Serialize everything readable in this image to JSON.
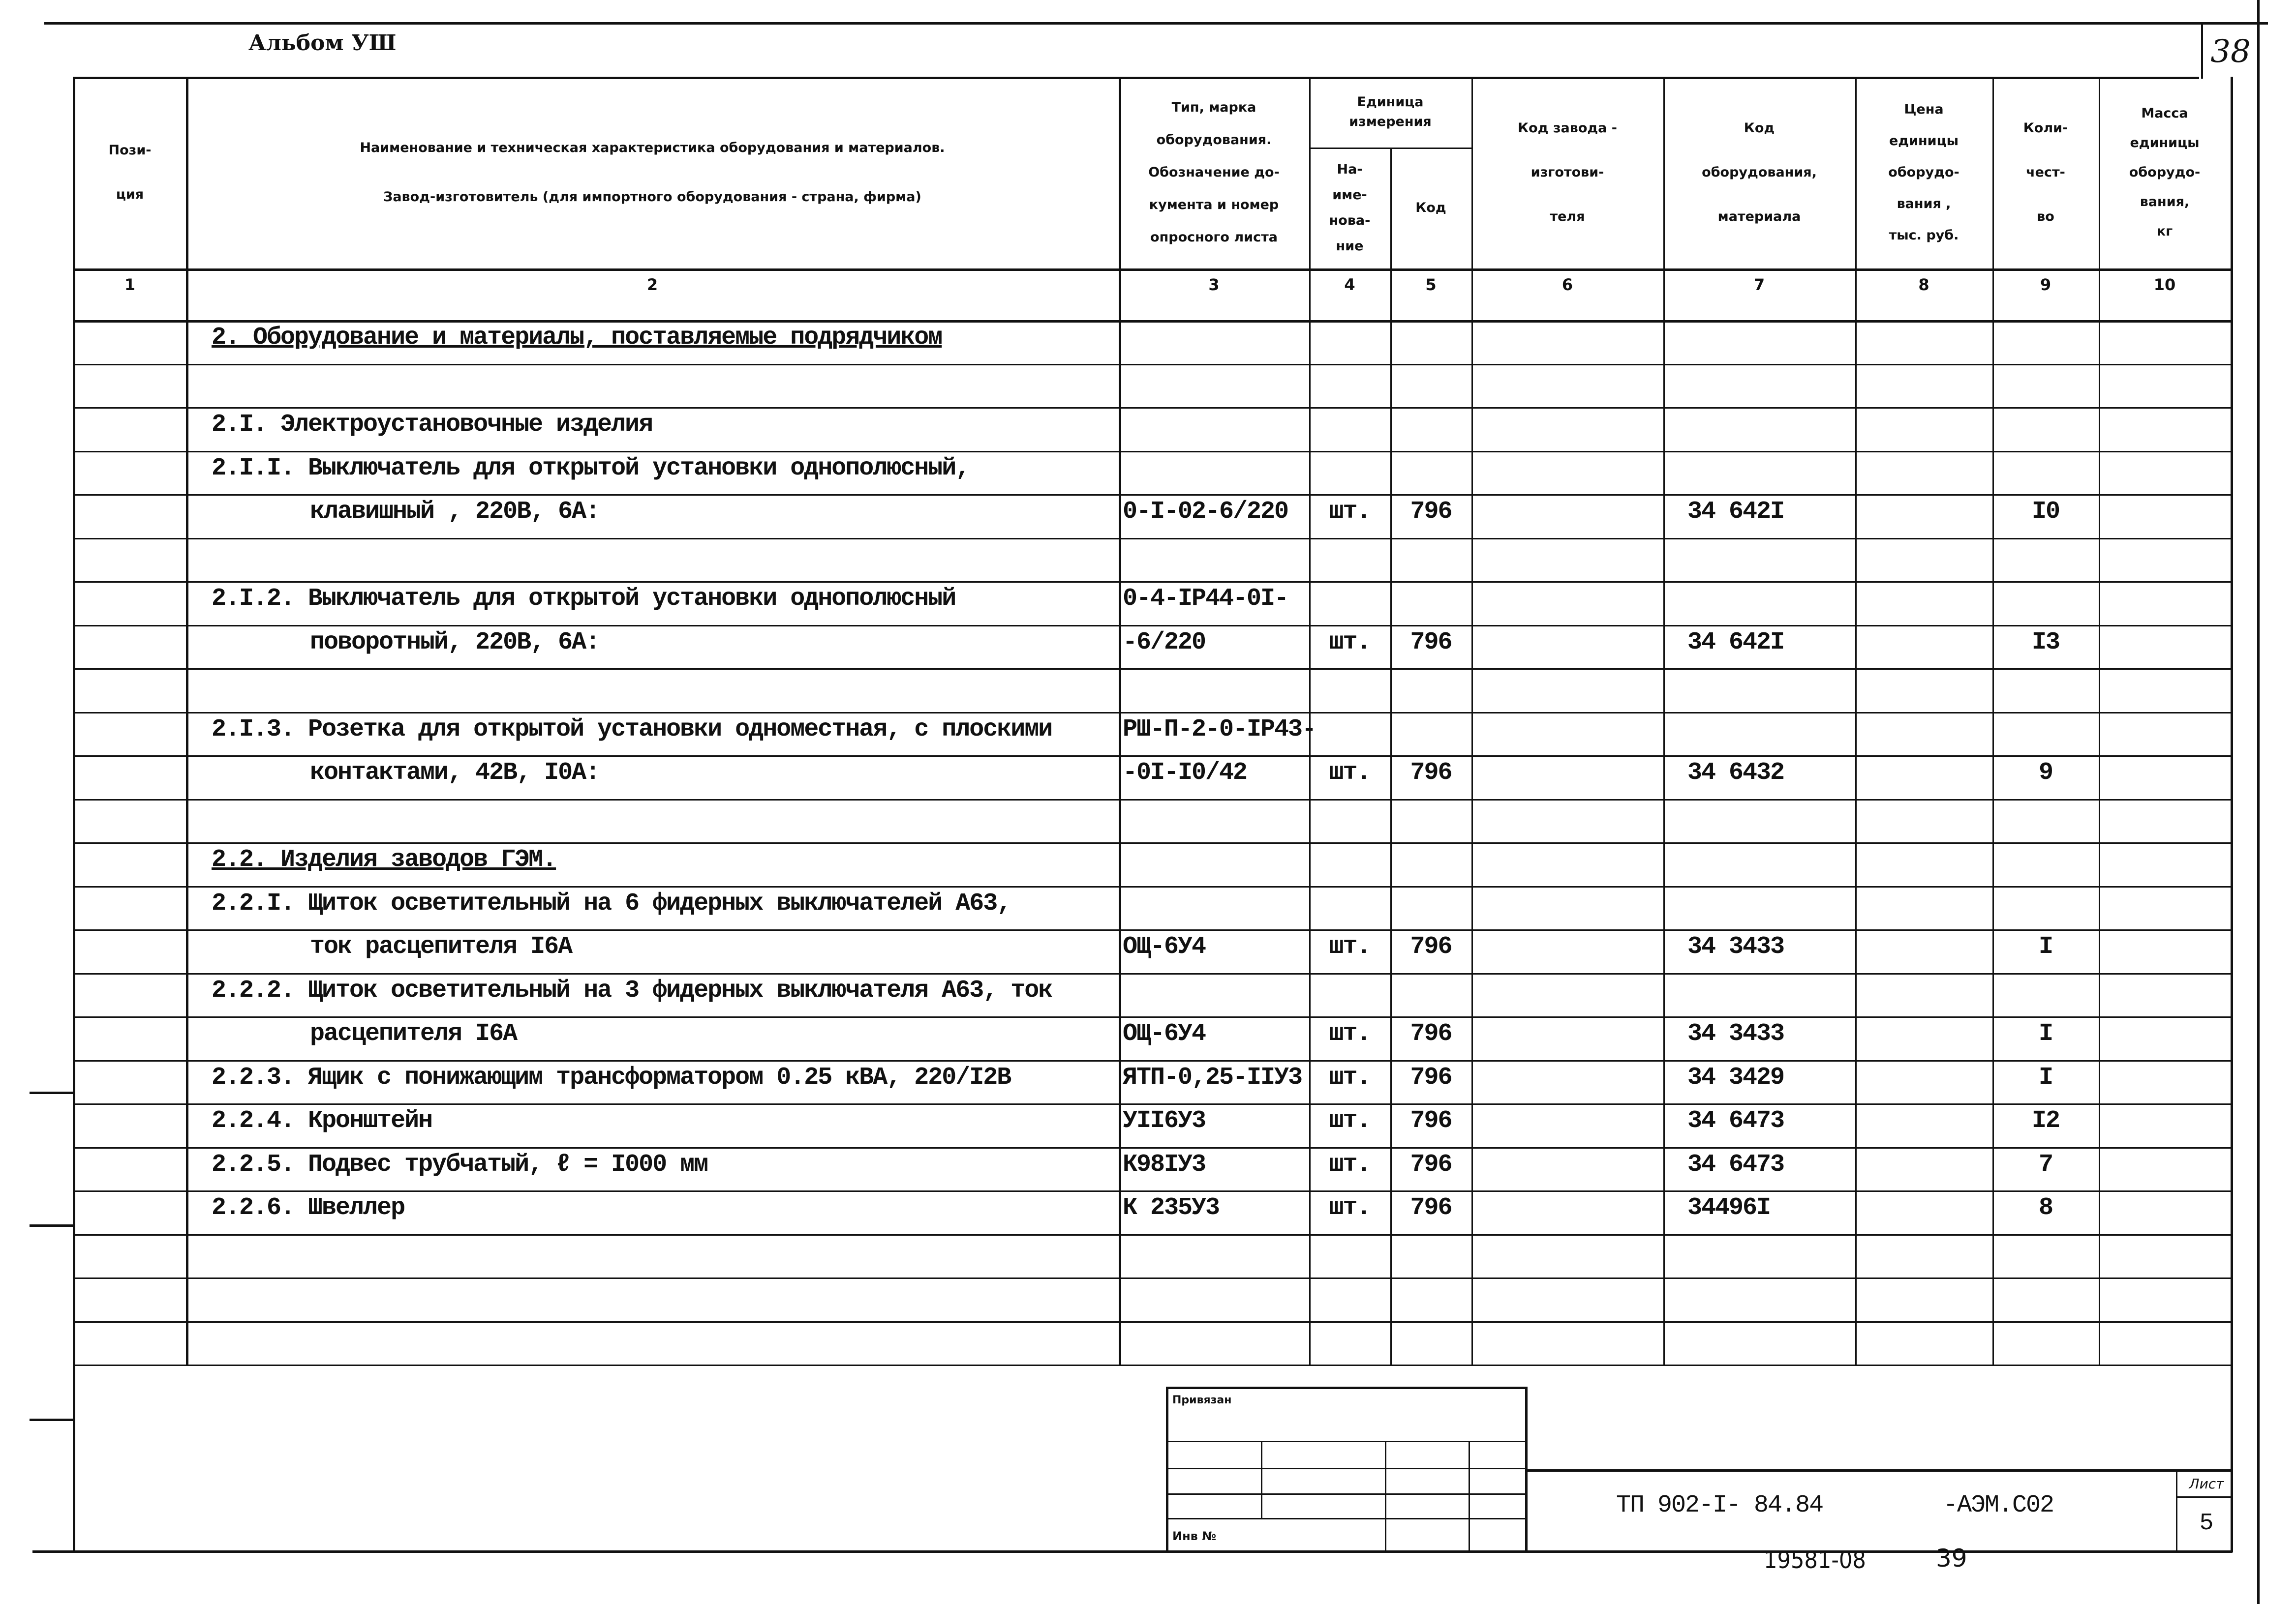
{
  "album_title": "Альбом УШ",
  "sheet_corner_number": "38",
  "header": {
    "col1": [
      "Пози-",
      "ция"
    ],
    "col2": [
      "Наименование и техническая характеристика оборудования и материалов.",
      "Завод-изготовитель (для импортного оборудования - страна, фирма)"
    ],
    "col3": [
      "Тип,      марка",
      "оборудования.",
      "Обозначение до-",
      "кумента и номер",
      "опросного листа"
    ],
    "col45_group": [
      "Единица",
      "измерения"
    ],
    "col4": [
      "На-",
      "име-",
      "нова-",
      "ние"
    ],
    "col5": [
      "Код"
    ],
    "col6": [
      "Код завода -",
      "изготови-",
      "теля"
    ],
    "col7": [
      "Код",
      "оборудования,",
      "материала"
    ],
    "col8": [
      "Цена",
      "единицы",
      "оборудо-",
      "вания ,",
      "тыс. руб."
    ],
    "col9": [
      "Коли-",
      "чест-",
      "во"
    ],
    "col10": [
      "Масса",
      "единицы",
      "оборудо-",
      "вания,",
      "кг"
    ],
    "numbers": [
      "1",
      "2",
      "3",
      "4",
      "5",
      "6",
      "7",
      "8",
      "9",
      "10"
    ]
  },
  "rows": [
    {
      "name": "2. Оборудование и материалы, поставляемые подрядчиком",
      "heading": true
    },
    {},
    {
      "name": "2.I. Электроустановочные изделия"
    },
    {
      "name": "2.I.I. Выключатель для открытой установки однополюсный,"
    },
    {
      "name": "клавишный , 220В, 6А:",
      "indent": true,
      "type": "0-I-02-6/220",
      "unit": "шт.",
      "unit_code": "796",
      "code": "34 642I",
      "qty": "I0"
    },
    {},
    {
      "name": "2.I.2. Выключатель для открытой установки  однополюсный",
      "type": "0-4-IP44-0I-"
    },
    {
      "name": "поворотный, 220В, 6А:",
      "indent": true,
      "type": "-6/220",
      "unit": "шт.",
      "unit_code": "796",
      "code": "34 642I",
      "qty": "I3"
    },
    {},
    {
      "name": "2.I.3. Розетка для открытой установки одноместная, с плоскими",
      "type": "РШ-П-2-0-IP43-"
    },
    {
      "name": "контактами, 42В, I0А:",
      "indent": true,
      "type": "-0I-I0/42",
      "unit": "шт.",
      "unit_code": "796",
      "code": "34 6432",
      "qty": "9"
    },
    {},
    {
      "name": "2.2.  Изделия заводов ГЭМ.",
      "heading": true
    },
    {
      "name": "2.2.I. Щиток осветительный на 6 фидерных  выключателей А63,"
    },
    {
      "name": "ток расцепителя I6А",
      "indent": true,
      "type": "ОЩ-6У4",
      "unit": "шт.",
      "unit_code": "796",
      "code": "34 3433",
      "qty": "I"
    },
    {
      "name": "2.2.2. Щиток осветительный на 3 фидерных выключателя А63, ток"
    },
    {
      "name": "расцепителя I6А",
      "indent": true,
      "type": "ОЩ-6У4",
      "unit": "шт.",
      "unit_code": "796",
      "code": "34 3433",
      "qty": "I"
    },
    {
      "name": "2.2.3. Ящик с понижающим трансформатором 0.25 кВА, 220/I2В",
      "type": "ЯТП-0,25-IIУ3",
      "unit": "шт.",
      "unit_code": "796",
      "code": "34 3429",
      "qty": "I"
    },
    {
      "name": "2.2.4. Кронштейн",
      "type": "УII6У3",
      "unit": "шт.",
      "unit_code": "796",
      "code": "34 6473",
      "qty": "I2"
    },
    {
      "name": "2.2.5. Подвес трубчатый, ℓ = I000 мм",
      "type": "К98IУ3",
      "unit": "шт.",
      "unit_code": "796",
      "code": "34 6473",
      "qty": "7"
    },
    {
      "name": "2.2.6. Швеллер",
      "type": "К 235У3",
      "unit": "шт.",
      "unit_code": "796",
      "code": "34496I",
      "qty": "8"
    },
    {},
    {},
    {}
  ],
  "stamp": {
    "linked_label": "Привязан",
    "inv_label": "Инв №"
  },
  "title_block": {
    "doc_code": "ТП 902-I- 84.84",
    "doc_suffix": "-АЭМ.С02",
    "sheet_label": "Лист",
    "sheet_number": "5"
  },
  "footer": {
    "archive_number": "19581-08",
    "page": "39"
  }
}
